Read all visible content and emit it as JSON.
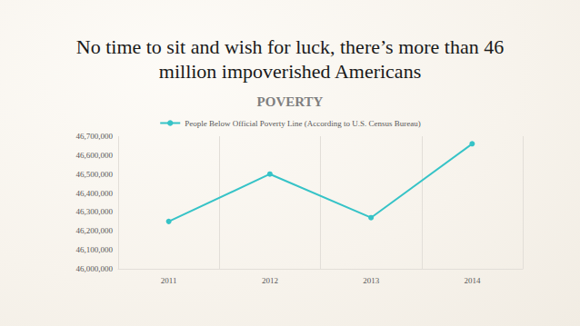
{
  "chart_data": {
    "type": "line",
    "title": "POVERTY",
    "subtitle": "No time to sit and wish for luck, there’s more than 46 million impoverished Americans",
    "categories": [
      "2011",
      "2012",
      "2013",
      "2014"
    ],
    "series": [
      {
        "name": "People Below Official Poverty Line (According to U.S. Census Bureau)",
        "color": "#36c3c7",
        "values": [
          46250000,
          46500000,
          46270000,
          46660000
        ],
        "marker": "circle"
      }
    ],
    "ylim": [
      46000000,
      46700000
    ],
    "yticks": [
      {
        "value": 46000000,
        "label": "46,000,000"
      },
      {
        "value": 46100000,
        "label": "46,100,000"
      },
      {
        "value": 46200000,
        "label": "46,200,000"
      },
      {
        "value": 46300000,
        "label": "46,300,000"
      },
      {
        "value": 46400000,
        "label": "46,400,000"
      },
      {
        "value": 46500000,
        "label": "46,500,000"
      },
      {
        "value": 46600000,
        "label": "46,600,000"
      },
      {
        "value": 46700000,
        "label": "46,700,000"
      }
    ],
    "grid": true,
    "legend": "top"
  }
}
